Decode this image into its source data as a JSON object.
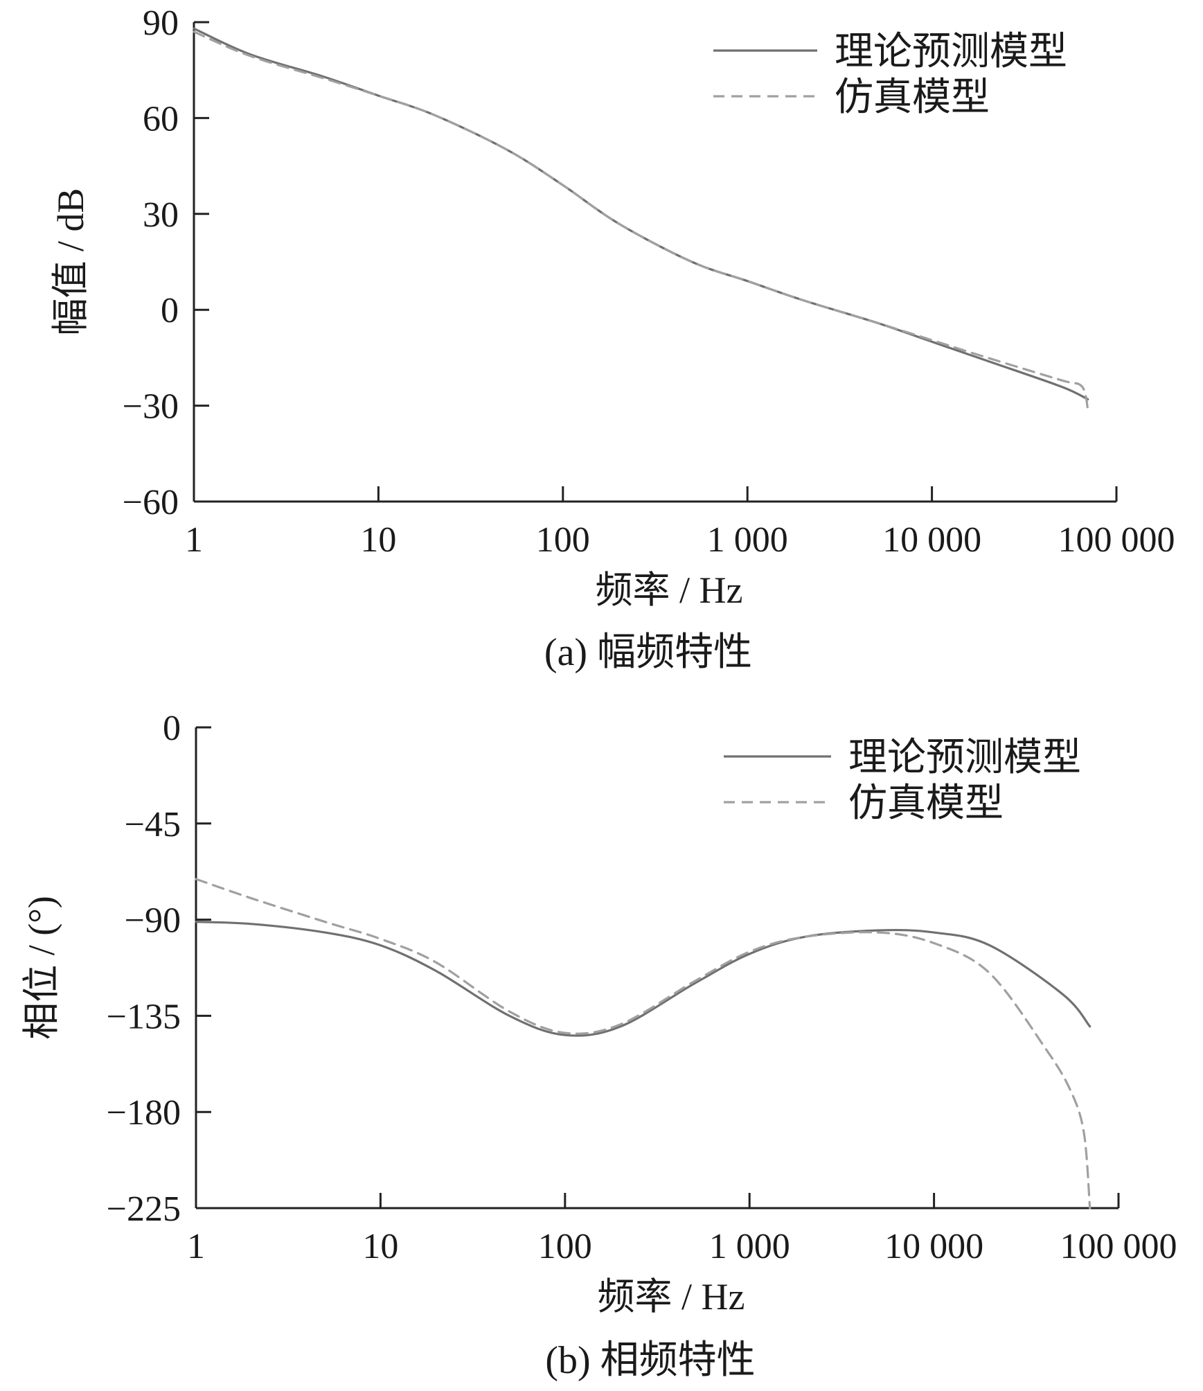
{
  "chart_data": [
    {
      "type": "line",
      "caption": "(a)  幅频特性",
      "xlabel": "频率 / Hz",
      "ylabel": "幅值 / dB",
      "xscale": "log",
      "xlim": [
        1,
        100000
      ],
      "ylim": [
        -60,
        90
      ],
      "xticks": [
        1,
        10,
        100,
        1000,
        10000,
        100000
      ],
      "xtick_labels": [
        "1",
        "10",
        "100",
        "1 000",
        "10 000",
        "100 000"
      ],
      "yticks": [
        90,
        60,
        30,
        0,
        -30,
        -60
      ],
      "ytick_labels": [
        "90",
        "60",
        "30",
        "0",
        "−30",
        "−60"
      ],
      "legend_position": "top-right",
      "grid": false,
      "series": [
        {
          "name": "理论预测模型",
          "style": "solid",
          "color": "#707070",
          "x": [
            1,
            2,
            5,
            10,
            20,
            50,
            100,
            200,
            500,
            1000,
            2000,
            5000,
            10000,
            20000,
            50000,
            70000
          ],
          "y": [
            88,
            80,
            73,
            67,
            61,
            50,
            39,
            27,
            15,
            9,
            3,
            -4,
            -10,
            -16,
            -24,
            -28
          ]
        },
        {
          "name": "仿真模型",
          "style": "dashed",
          "color": "#a0a0a0",
          "x": [
            1,
            2,
            5,
            10,
            20,
            50,
            100,
            200,
            500,
            1000,
            2000,
            5000,
            10000,
            20000,
            50000,
            65000,
            70000
          ],
          "y": [
            87,
            79.5,
            72.5,
            67,
            61,
            50,
            39,
            27,
            15,
            9,
            3,
            -4,
            -9.5,
            -15,
            -22,
            -24,
            -31
          ]
        }
      ]
    },
    {
      "type": "line",
      "caption": "(b)  相频特性",
      "xlabel": "频率 / Hz",
      "ylabel": "相位 / (°)",
      "xscale": "log",
      "xlim": [
        1,
        100000
      ],
      "ylim": [
        -225,
        0
      ],
      "xticks": [
        1,
        10,
        100,
        1000,
        10000,
        100000
      ],
      "xtick_labels": [
        "1",
        "10",
        "100",
        "1 000",
        "10 000",
        "100 000"
      ],
      "yticks": [
        0,
        -45,
        -90,
        -135,
        -180,
        -225
      ],
      "ytick_labels": [
        "0",
        "−45",
        "−90",
        "−135",
        "−180",
        "−225"
      ],
      "legend_position": "top-right",
      "grid": false,
      "series": [
        {
          "name": "理论预测模型",
          "style": "solid",
          "color": "#707070",
          "x": [
            1,
            2,
            5,
            10,
            20,
            50,
            100,
            200,
            500,
            1000,
            2000,
            5000,
            10000,
            20000,
            50000,
            70000
          ],
          "y": [
            -91,
            -92,
            -96,
            -102,
            -114,
            -135,
            -144,
            -140,
            -120,
            -106,
            -98,
            -95,
            -96,
            -102,
            -125,
            -140
          ]
        },
        {
          "name": "仿真模型",
          "style": "dashed",
          "color": "#a0a0a0",
          "x": [
            1,
            2,
            5,
            10,
            20,
            50,
            100,
            200,
            500,
            1000,
            2000,
            5000,
            10000,
            20000,
            40000,
            55000,
            65000,
            70000
          ],
          "y": [
            -71,
            -80,
            -91,
            -99,
            -110,
            -133,
            -143,
            -139,
            -119,
            -105,
            -98,
            -96,
            -101,
            -115,
            -150,
            -170,
            -190,
            -225
          ]
        }
      ]
    }
  ]
}
